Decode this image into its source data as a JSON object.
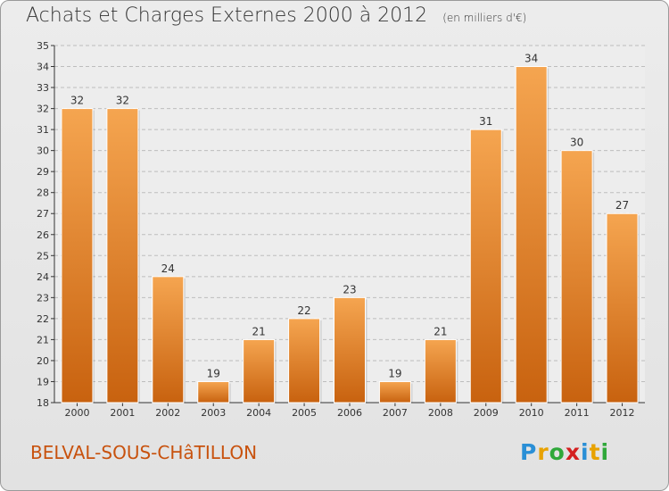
{
  "header": {
    "title": "Achats et Charges Externes 2000 à 2012",
    "subtitle": "(en milliers d'€)"
  },
  "footer": {
    "commune": "BELVAL-SOUS-CHâTILLON",
    "brand_letters": [
      "P",
      "r",
      "o",
      "x",
      "i",
      "t",
      "i"
    ]
  },
  "colors": {
    "bar_top": "#f5a550",
    "bar_bottom": "#c8620f",
    "grid": "#bdbdbd",
    "axis": "#333333",
    "commune_text": "#c8520e"
  },
  "chart_data": {
    "type": "bar",
    "title": "Achats et Charges Externes 2000 à 2012",
    "subtitle": "(en milliers d'€)",
    "categories": [
      "2000",
      "2001",
      "2002",
      "2003",
      "2004",
      "2005",
      "2006",
      "2007",
      "2008",
      "2009",
      "2010",
      "2011",
      "2012"
    ],
    "values": [
      32,
      32,
      24,
      19,
      21,
      22,
      23,
      19,
      21,
      31,
      34,
      30,
      27
    ],
    "ylim": [
      18,
      35
    ],
    "yticks": [
      18,
      19,
      20,
      21,
      22,
      23,
      24,
      25,
      26,
      27,
      28,
      29,
      30,
      31,
      32,
      33,
      34,
      35
    ],
    "grid": true,
    "data_labels": true
  }
}
